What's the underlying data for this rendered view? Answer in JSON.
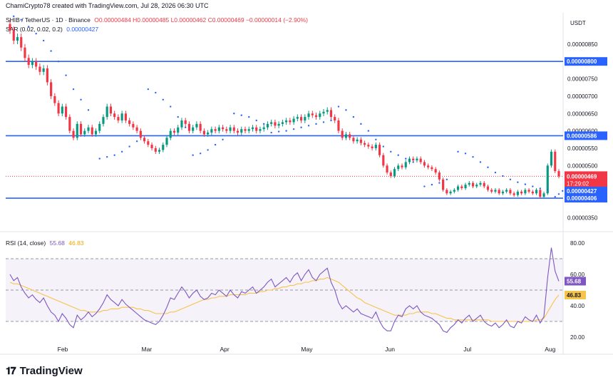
{
  "header": {
    "credit": "ChamiCrypto78 created with TradingView.com, Jul 28, 2026 06:30 UTC",
    "symbol": "SHIB / TetherUS · 1D · Binance",
    "ohlc": "O0.00000484 H0.00000485 L0.00000462 C0.00000469 −0.00000014 (−2.90%)",
    "sar_label": "SAR (0.02, 0.02, 0.2)",
    "sar_value": "0.00000427",
    "rsi_label": "RSI (14, close)",
    "rsi_value": "55.68",
    "rsi_ma_value": "46.83"
  },
  "brand": {
    "name": "TradingView",
    "logo": "tradingview-logo"
  },
  "colors": {
    "up": "#089981",
    "down": "#f23645",
    "sar": "#2962ff",
    "hline": "#2962ff",
    "rsi": "#7e57c2",
    "rsi_ma": "#f7c34a",
    "text": "#131722",
    "grid": "#f0f3fa"
  },
  "chart_data": [
    {
      "type": "candlestick",
      "title": "SHIB / TetherUS · 1D · Binance",
      "currency": "USDT",
      "x_labels": [
        "Feb",
        "Mar",
        "Apr",
        "May",
        "Jun",
        "Jul",
        "Aug"
      ],
      "y_ticks": [
        "0.00000850",
        "0.00000750",
        "0.00000700",
        "0.00000650",
        "0.00000600",
        "0.00000550",
        "0.00000500",
        "0.00000350"
      ],
      "ylim": [
        3.2e-06,
        9.4e-06
      ],
      "horizontal_lines": [
        {
          "value": 8e-06,
          "label": "0.00000800"
        },
        {
          "value": 5.86e-06,
          "label": "0.00000586"
        },
        {
          "value": 4.06e-06,
          "label": "0.00000406"
        }
      ],
      "current": {
        "value": 4.69e-06,
        "label": "0.00000469",
        "countdown": "17:29:02"
      },
      "sar_current": {
        "value": 4.27e-06,
        "label": "0.00000427"
      },
      "close_series": [
        8.9e-06,
        8.6e-06,
        8.7e-06,
        8.4e-06,
        8.1e-06,
        7.9e-06,
        8e-06,
        7.85e-06,
        7.7e-06,
        7.8e-06,
        7.4e-06,
        7e-06,
        6.8e-06,
        6.5e-06,
        6.7e-06,
        6.4e-06,
        6e-06,
        5.8e-06,
        6.2e-06,
        5.9e-06,
        6e-06,
        6.1e-06,
        5.9e-06,
        6e-06,
        6.2e-06,
        6.4e-06,
        6.7e-06,
        6.5e-06,
        6.4e-06,
        6.3e-06,
        6.5e-06,
        6.3e-06,
        6.2e-06,
        6.1e-06,
        6e-06,
        5.8e-06,
        5.7e-06,
        5.6e-06,
        5.5e-06,
        5.4e-06,
        5.45e-06,
        5.6e-06,
        5.8e-06,
        6e-06,
        5.95e-06,
        6.1e-06,
        6.3e-06,
        6.2e-06,
        6e-06,
        6.1e-06,
        6.2e-06,
        6e-06,
        5.9e-06,
        5.95e-06,
        6.05e-06,
        6e-06,
        6.1e-06,
        6.05e-06,
        6e-06,
        6.1e-06,
        6e-06,
        5.95e-06,
        6.05e-06,
        6e-06,
        6.05e-06,
        6.1e-06,
        6e-06,
        6.05e-06,
        6.1e-06,
        6.2e-06,
        6.25e-06,
        6.15e-06,
        6.2e-06,
        6.25e-06,
        6.3e-06,
        6.25e-06,
        6.35e-06,
        6.4e-06,
        6.3e-06,
        6.4e-06,
        6.5e-06,
        6.45e-06,
        6.4e-06,
        6.5e-06,
        6.55e-06,
        6.6e-06,
        6.4e-06,
        6.3e-06,
        6e-06,
        5.8e-06,
        5.9e-06,
        5.8e-06,
        5.7e-06,
        5.75e-06,
        5.65e-06,
        5.6e-06,
        5.55e-06,
        5.5e-06,
        5.6e-06,
        5.3e-06,
        5e-06,
        4.8e-06,
        4.7e-06,
        4.9e-06,
        5e-06,
        4.95e-06,
        5.1e-06,
        5.2e-06,
        5.15e-06,
        5.2e-06,
        5.1e-06,
        5e-06,
        4.95e-06,
        4.9e-06,
        4.8e-06,
        4.6e-06,
        4.3e-06,
        4.2e-06,
        4.25e-06,
        4.3e-06,
        4.4e-06,
        4.35e-06,
        4.45e-06,
        4.5e-06,
        4.4e-06,
        4.45e-06,
        4.5e-06,
        4.4e-06,
        4.3e-06,
        4.25e-06,
        4.3e-06,
        4.2e-06,
        4.25e-06,
        4.3e-06,
        4.2e-06,
        4.15e-06,
        4.25e-06,
        4.2e-06,
        4.3e-06,
        4.25e-06,
        4.2e-06,
        4.3e-06,
        4.1e-06,
        4.2e-06,
        5e-06,
        5.4e-06,
        4.84e-06,
        4.69e-06
      ],
      "sar_series": [
        [
          1,
          9.3e-06
        ],
        [
          3,
          9.2e-06
        ],
        [
          5,
          9e-06
        ],
        [
          7,
          8.8e-06
        ],
        [
          9,
          8.6e-06
        ],
        [
          11,
          8.3e-06
        ],
        [
          13,
          8e-06
        ],
        [
          15,
          7.6e-06
        ],
        [
          17,
          7.2e-06
        ],
        [
          19,
          6.9e-06
        ],
        [
          21,
          6.6e-06
        ],
        [
          24,
          5.2e-06
        ],
        [
          26,
          5.25e-06
        ],
        [
          28,
          5.3e-06
        ],
        [
          30,
          5.4e-06
        ],
        [
          32,
          5.55e-06
        ],
        [
          34,
          5.7e-06
        ],
        [
          37,
          7.2e-06
        ],
        [
          39,
          7.1e-06
        ],
        [
          41,
          6.9e-06
        ],
        [
          43,
          6.7e-06
        ],
        [
          45,
          6.4e-06
        ],
        [
          47,
          6.1e-06
        ],
        [
          49,
          5.3e-06
        ],
        [
          51,
          5.35e-06
        ],
        [
          53,
          5.45e-06
        ],
        [
          55,
          5.6e-06
        ],
        [
          57,
          5.75e-06
        ],
        [
          60,
          6.5e-06
        ],
        [
          62,
          6.45e-06
        ],
        [
          64,
          6.4e-06
        ],
        [
          66,
          6.3e-06
        ],
        [
          68,
          6.2e-06
        ],
        [
          70,
          5.95e-06
        ],
        [
          72,
          5.98e-06
        ],
        [
          74,
          6e-06
        ],
        [
          76,
          6.05e-06
        ],
        [
          78,
          6.1e-06
        ],
        [
          80,
          6.15e-06
        ],
        [
          82,
          6.2e-06
        ],
        [
          84,
          6.25e-06
        ],
        [
          86,
          6.3e-06
        ],
        [
          88,
          6.7e-06
        ],
        [
          90,
          6.6e-06
        ],
        [
          92,
          6.4e-06
        ],
        [
          94,
          6.2e-06
        ],
        [
          96,
          6e-06
        ],
        [
          98,
          5.75e-06
        ],
        [
          100,
          5.55e-06
        ],
        [
          102,
          5.4e-06
        ],
        [
          104,
          5.3e-06
        ],
        [
          106,
          5.2e-06
        ],
        [
          108,
          5.1e-06
        ],
        [
          111,
          4.4e-06
        ],
        [
          113,
          4.45e-06
        ],
        [
          115,
          4.5e-06
        ],
        [
          117,
          4.6e-06
        ],
        [
          120,
          5.4e-06
        ],
        [
          122,
          5.35e-06
        ],
        [
          124,
          5.25e-06
        ],
        [
          126,
          5.1e-06
        ],
        [
          128,
          4.95e-06
        ],
        [
          130,
          4.8e-06
        ],
        [
          132,
          4.7e-06
        ],
        [
          134,
          4.6e-06
        ],
        [
          136,
          4.52e-06
        ],
        [
          138,
          4.46e-06
        ],
        [
          140,
          4.4e-06
        ],
        [
          142,
          4.34e-06
        ],
        [
          144,
          4.3e-06
        ],
        [
          146,
          4.1e-06
        ],
        [
          147,
          4.18e-06
        ],
        [
          148,
          4.27e-06
        ]
      ]
    },
    {
      "type": "line",
      "title": "RSI (14, close)",
      "y_ticks": [
        "80.00",
        "60.00",
        "40.00",
        "20.00"
      ],
      "ylim": [
        15,
        85
      ],
      "band": [
        30,
        70
      ],
      "series": [
        {
          "name": "RSI",
          "values": [
            60,
            56,
            58,
            52,
            48,
            45,
            47,
            44,
            42,
            45,
            40,
            36,
            34,
            30,
            35,
            32,
            28,
            26,
            34,
            31,
            33,
            36,
            33,
            35,
            38,
            42,
            47,
            44,
            42,
            40,
            44,
            41,
            39,
            37,
            35,
            33,
            31,
            30,
            29,
            28,
            30,
            34,
            39,
            45,
            44,
            48,
            52,
            49,
            45,
            48,
            50,
            46,
            44,
            45,
            48,
            47,
            50,
            48,
            46,
            50,
            47,
            45,
            49,
            48,
            50,
            52,
            48,
            50,
            52,
            55,
            57,
            52,
            54,
            56,
            58,
            55,
            59,
            61,
            56,
            60,
            63,
            58,
            56,
            60,
            62,
            64,
            55,
            50,
            42,
            38,
            40,
            38,
            36,
            38,
            35,
            34,
            33,
            32,
            36,
            30,
            26,
            24,
            24,
            30,
            34,
            33,
            38,
            40,
            38,
            40,
            36,
            34,
            33,
            32,
            30,
            28,
            24,
            23,
            26,
            28,
            31,
            29,
            32,
            34,
            30,
            32,
            34,
            30,
            28,
            27,
            29,
            26,
            28,
            31,
            27,
            26,
            30,
            29,
            33,
            31,
            30,
            34,
            29,
            33,
            58,
            77,
            62,
            55.68
          ]
        },
        {
          "name": "MA",
          "values": [
            55,
            54,
            54,
            53,
            52,
            51,
            50,
            49,
            48,
            47,
            46,
            45,
            44,
            43,
            42,
            41,
            40,
            39,
            38,
            37,
            37,
            36,
            36,
            36,
            36,
            37,
            37,
            38,
            38,
            38,
            39,
            39,
            39,
            39,
            38,
            38,
            37,
            37,
            36,
            35,
            35,
            35,
            35,
            36,
            36,
            37,
            38,
            39,
            40,
            41,
            42,
            43,
            44,
            44,
            45,
            45,
            46,
            46,
            46,
            47,
            47,
            47,
            47,
            47,
            48,
            48,
            48,
            49,
            49,
            50,
            50,
            51,
            51,
            52,
            52,
            53,
            53,
            54,
            54,
            55,
            55,
            56,
            56,
            57,
            57,
            58,
            57,
            56,
            55,
            53,
            51,
            49,
            47,
            45,
            44,
            42,
            41,
            40,
            39,
            38,
            37,
            36,
            35,
            34,
            34,
            34,
            34,
            35,
            35,
            36,
            36,
            36,
            36,
            35,
            35,
            34,
            33,
            32,
            32,
            31,
            31,
            31,
            31,
            31,
            31,
            31,
            31,
            31,
            31,
            30,
            30,
            30,
            30,
            30,
            30,
            30,
            30,
            30,
            30,
            30,
            30,
            31,
            31,
            32,
            36,
            40,
            44,
            46.83
          ]
        }
      ]
    }
  ]
}
